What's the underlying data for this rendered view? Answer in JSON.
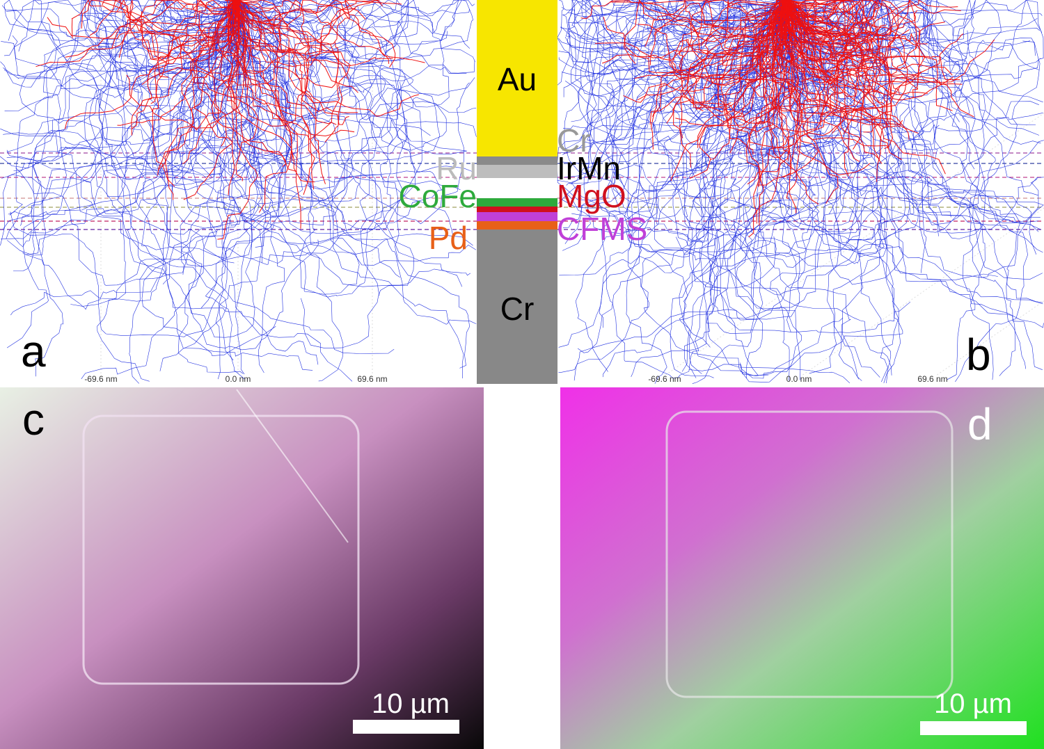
{
  "panels": [
    {
      "label": "a",
      "axis_labels": [
        "-69.6 nm",
        "0.0 nm",
        "69.6 nm"
      ]
    },
    {
      "label": "b",
      "axis_labels": [
        "-69.6 nm",
        "0.0 nm",
        "69.6 nm"
      ]
    },
    {
      "label": "c",
      "scale_bar": "10 µm"
    },
    {
      "label": "d",
      "scale_bar": "10 µm"
    }
  ],
  "stack": {
    "layers": [
      "Au",
      "Cr",
      "IrMn",
      "Ru",
      "CoFe",
      "MgO",
      "CFMS",
      "Pd",
      "Cr"
    ]
  }
}
